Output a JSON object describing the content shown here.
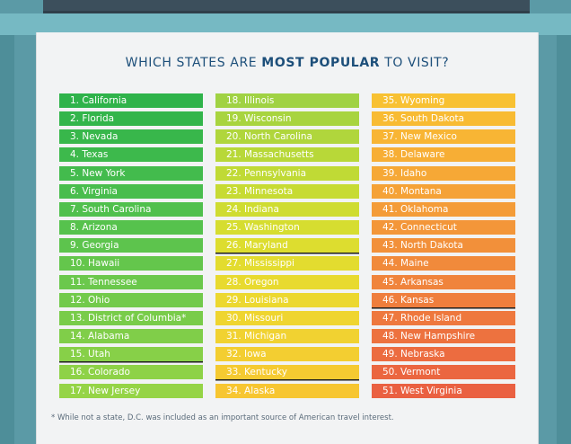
{
  "title": {
    "prefix": "WHICH STATES ARE ",
    "highlight": "MOST POPULAR",
    "suffix": " TO VISIT?"
  },
  "columns": [
    {
      "items": [
        {
          "label": "1. California",
          "color": "#2fb34a"
        },
        {
          "label": "2. Florida",
          "color": "#33b54b"
        },
        {
          "label": "3. Nevada",
          "color": "#38b74b"
        },
        {
          "label": "4. Texas",
          "color": "#3db94c"
        },
        {
          "label": "5. New York",
          "color": "#43bb4d"
        },
        {
          "label": "6. Virginia",
          "color": "#49bd4d"
        },
        {
          "label": "7. South Carolina",
          "color": "#50c04d"
        },
        {
          "label": "8. Arizona",
          "color": "#56c24d"
        },
        {
          "label": "9. Georgia",
          "color": "#5dc44d"
        },
        {
          "label": "10. Hawaii",
          "color": "#64c64c"
        },
        {
          "label": "11. Tennessee",
          "color": "#6bc84c"
        },
        {
          "label": "12. Ohio",
          "color": "#72ca4b"
        },
        {
          "label": "13. District of Columbia*",
          "color": "#79cc4a"
        },
        {
          "label": "14. Alabama",
          "color": "#80ce49"
        },
        {
          "label": "15. Utah",
          "color": "#87d048",
          "underline": true
        },
        {
          "label": "16. Colorado",
          "color": "#8ed247"
        },
        {
          "label": "17. New Jersey",
          "color": "#95d446"
        }
      ]
    },
    {
      "items": [
        {
          "label": "18. Illinois",
          "color": "#a0d243"
        },
        {
          "label": "19. Wisconsin",
          "color": "#a8d43f"
        },
        {
          "label": "20. North Carolina",
          "color": "#b0d63c"
        },
        {
          "label": "21. Massachusetts",
          "color": "#b8d838"
        },
        {
          "label": "22. Pennsylvania",
          "color": "#c0da35"
        },
        {
          "label": "23. Minnesota",
          "color": "#c7db33"
        },
        {
          "label": "24. Indiana",
          "color": "#cfdc31"
        },
        {
          "label": "25. Washington",
          "color": "#d6dd30"
        },
        {
          "label": "26. Maryland",
          "color": "#dddd2f",
          "underline": true
        },
        {
          "label": "27. Mississippi",
          "color": "#e3dc2f"
        },
        {
          "label": "28. Oregon",
          "color": "#e8da2f"
        },
        {
          "label": "29. Louisiana",
          "color": "#ecd82f"
        },
        {
          "label": "30. Missouri",
          "color": "#efd530"
        },
        {
          "label": "31. Michigan",
          "color": "#f1d231"
        },
        {
          "label": "32. Iowa",
          "color": "#f3ce31"
        },
        {
          "label": "33. Kentucky",
          "color": "#f5ca31",
          "underline": true
        },
        {
          "label": "34. Alaska",
          "color": "#f7c631"
        }
      ]
    },
    {
      "items": [
        {
          "label": "35. Wyoming",
          "color": "#f8c132"
        },
        {
          "label": "36. South Dakota",
          "color": "#f8bb33"
        },
        {
          "label": "37. New Mexico",
          "color": "#f8b534"
        },
        {
          "label": "38. Delaware",
          "color": "#f7ae35"
        },
        {
          "label": "39. Idaho",
          "color": "#f6a836"
        },
        {
          "label": "40. Montana",
          "color": "#f5a237"
        },
        {
          "label": "41. Oklahoma",
          "color": "#f49c38"
        },
        {
          "label": "42. Connecticut",
          "color": "#f39639"
        },
        {
          "label": "43. North Dakota",
          "color": "#f2903a"
        },
        {
          "label": "44. Maine",
          "color": "#f18a3b"
        },
        {
          "label": "45. Arkansas",
          "color": "#f0843c"
        },
        {
          "label": "46. Kansas",
          "color": "#ef7e3d",
          "underline": true
        },
        {
          "label": "47. Rhode Island",
          "color": "#ee783e"
        },
        {
          "label": "48. New Hampshire",
          "color": "#ed723f"
        },
        {
          "label": "49. Nebraska",
          "color": "#ec6c40"
        },
        {
          "label": "50. Vermont",
          "color": "#eb6640"
        },
        {
          "label": "51. West Virginia",
          "color": "#ea6041"
        }
      ]
    }
  ],
  "footnote": "* While not a state, D.C. was included as an important source of American travel interest."
}
